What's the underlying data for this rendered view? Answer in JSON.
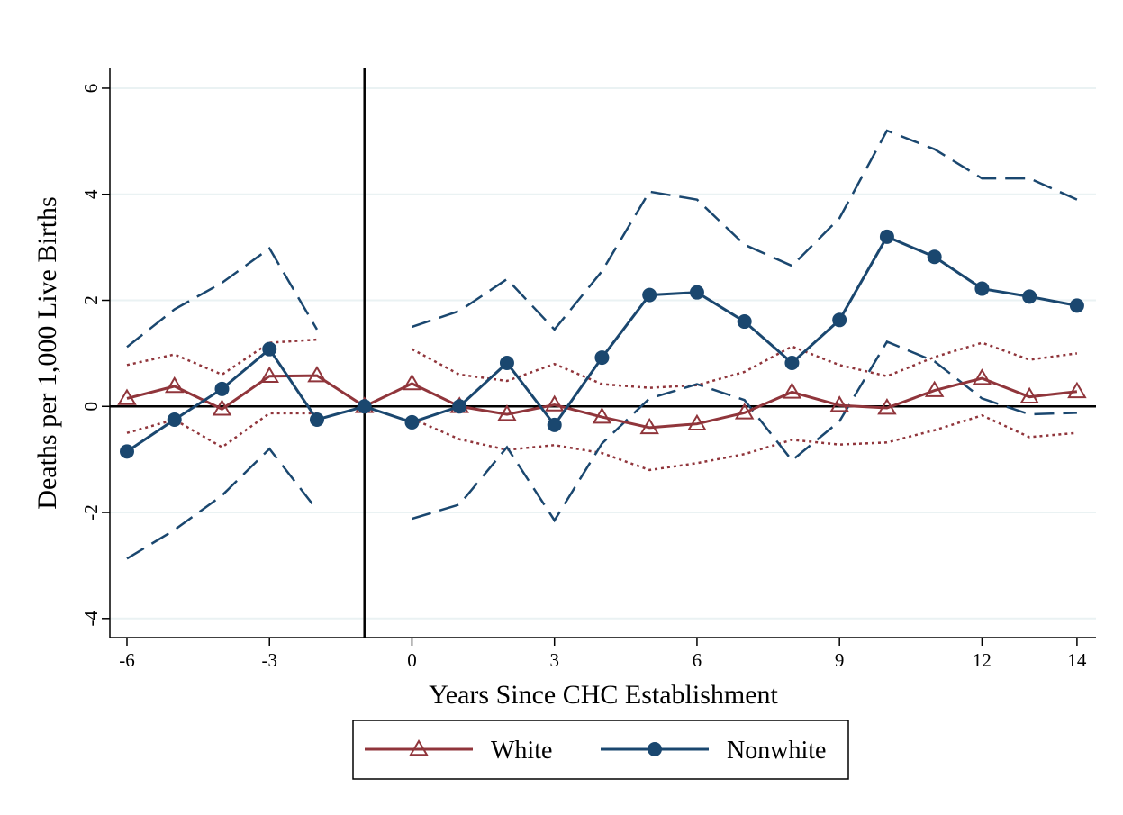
{
  "chart_data": {
    "type": "line",
    "ylabel": "Deaths per 1,000 Live Births",
    "xlabel": "Years Since CHC Establishment",
    "x": [
      -6,
      -5,
      -4,
      -3,
      -2,
      -1,
      0,
      1,
      2,
      3,
      4,
      5,
      6,
      7,
      8,
      9,
      10,
      11,
      12,
      13,
      14
    ],
    "series": [
      {
        "name": "White",
        "color": "#90353b",
        "marker": "triangle",
        "dash": "solid",
        "values": [
          0.15,
          0.38,
          -0.05,
          0.57,
          0.58,
          0,
          0.43,
          0,
          -0.15,
          0.03,
          -0.2,
          -0.4,
          -0.33,
          -0.12,
          0.27,
          0.02,
          -0.03,
          0.3,
          0.53,
          0.18,
          0.28
        ]
      },
      {
        "name": "Nonwhite",
        "color": "#1a476f",
        "marker": "circle",
        "dash": "solid",
        "values": [
          -0.85,
          -0.25,
          0.33,
          1.08,
          -0.25,
          0,
          -0.3,
          0,
          0.82,
          -0.35,
          0.92,
          2.1,
          2.15,
          1.6,
          0.82,
          1.63,
          3.2,
          2.82,
          2.22,
          2.07,
          1.9
        ]
      },
      {
        "color": "#90353b",
        "dash": "dotted",
        "values": [
          0.78,
          0.98,
          0.6,
          1.2,
          1.26,
          null,
          1.08,
          0.6,
          0.48,
          0.8,
          0.42,
          0.35,
          0.4,
          0.65,
          1.13,
          0.78,
          0.57,
          0.93,
          1.2,
          0.88,
          1.0
        ]
      },
      {
        "color": "#90353b",
        "dash": "dotted",
        "values": [
          -0.5,
          -0.25,
          -0.77,
          -0.13,
          -0.13,
          null,
          -0.23,
          -0.62,
          -0.82,
          -0.73,
          -0.88,
          -1.2,
          -1.07,
          -0.9,
          -0.63,
          -0.72,
          -0.68,
          -0.45,
          -0.17,
          -0.58,
          -0.5
        ]
      },
      {
        "color": "#1a476f",
        "dash": "dashed",
        "values": [
          1.12,
          1.83,
          2.33,
          2.98,
          1.45,
          null,
          1.5,
          1.8,
          2.4,
          1.45,
          2.55,
          4.05,
          3.9,
          3.05,
          2.65,
          3.55,
          5.2,
          4.85,
          4.3,
          4.3,
          3.9
        ]
      },
      {
        "color": "#1a476f",
        "dash": "dashed",
        "values": [
          -2.87,
          -2.33,
          -1.68,
          -0.8,
          -1.95,
          null,
          -2.12,
          -1.85,
          -0.77,
          -2.15,
          -0.7,
          0.15,
          0.42,
          0.12,
          -1.02,
          -0.28,
          1.22,
          0.85,
          0.15,
          -0.15,
          -0.12
        ]
      }
    ],
    "xlim": [
      -6.36,
      14.4
    ],
    "ylim": [
      -4.36,
      6.39
    ],
    "xticks": [
      -6,
      -3,
      0,
      3,
      6,
      9,
      12,
      14
    ],
    "yticks": [
      -4,
      -2,
      0,
      2,
      4,
      6
    ],
    "vline": -1,
    "hline": 0,
    "grid": true,
    "legend": "bottom"
  }
}
